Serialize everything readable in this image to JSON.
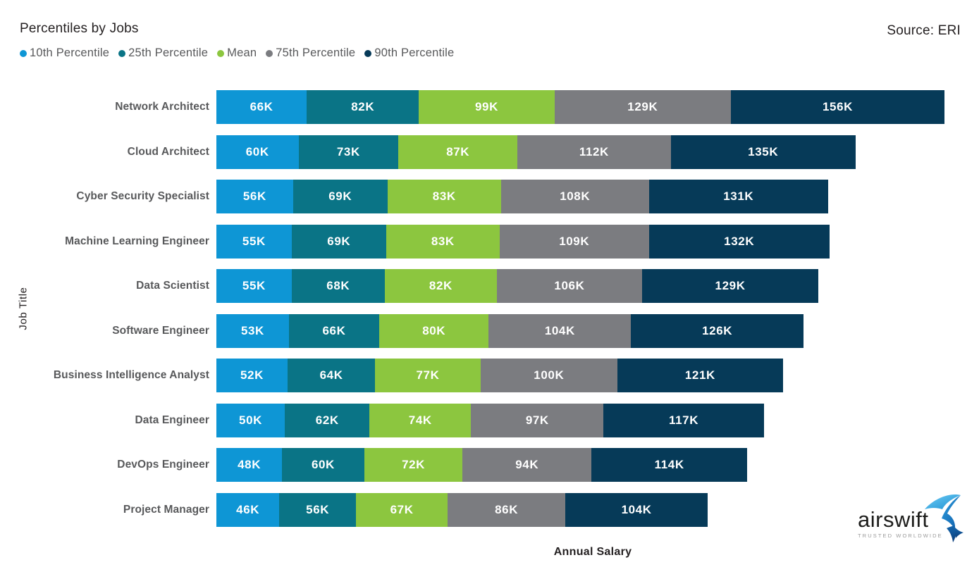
{
  "header": {
    "title": "Percentiles by Jobs",
    "source": "Source: ERI"
  },
  "axes": {
    "x_label": "Annual Salary",
    "y_label": "Job Title"
  },
  "logo": {
    "name": "airswift",
    "tagline": "TRUSTED WORLDWIDE"
  },
  "colors": {
    "title_text": "#231f20",
    "legend_text": "#58595b",
    "job_label_text": "#58595b",
    "bar_value_text": "#ffffff",
    "background": "#ffffff"
  },
  "chart_data": {
    "type": "bar",
    "orientation": "horizontal",
    "stacked": true,
    "grid": false,
    "legend_position": "top-left",
    "title": "Percentiles by Jobs",
    "xlabel": "Annual Salary",
    "ylabel": "Job Title",
    "value_suffix": "K",
    "categories": [
      "Network Architect",
      "Cloud Architect",
      "Cyber Security Specialist",
      "Machine Learning Engineer",
      "Data Scientist",
      "Software Engineer",
      "Business Intelligence Analyst",
      "Data Engineer",
      "DevOps Engineer",
      "Project Manager"
    ],
    "series": [
      {
        "name": "10th Percentile",
        "color": "#0e96d5",
        "values": [
          66,
          60,
          56,
          55,
          55,
          53,
          52,
          50,
          48,
          46
        ]
      },
      {
        "name": "25th Percentile",
        "color": "#0a7486",
        "values": [
          82,
          73,
          69,
          69,
          68,
          66,
          64,
          62,
          60,
          56
        ]
      },
      {
        "name": "Mean",
        "color": "#8cc63f",
        "values": [
          99,
          87,
          83,
          83,
          82,
          80,
          77,
          74,
          72,
          67
        ]
      },
      {
        "name": "75th Percentile",
        "color": "#7b7c80",
        "values": [
          129,
          112,
          108,
          109,
          106,
          104,
          100,
          97,
          94,
          86
        ]
      },
      {
        "name": "90th Percentile",
        "color": "#063a58",
        "values": [
          156,
          135,
          131,
          132,
          129,
          126,
          121,
          117,
          114,
          104
        ]
      }
    ]
  }
}
